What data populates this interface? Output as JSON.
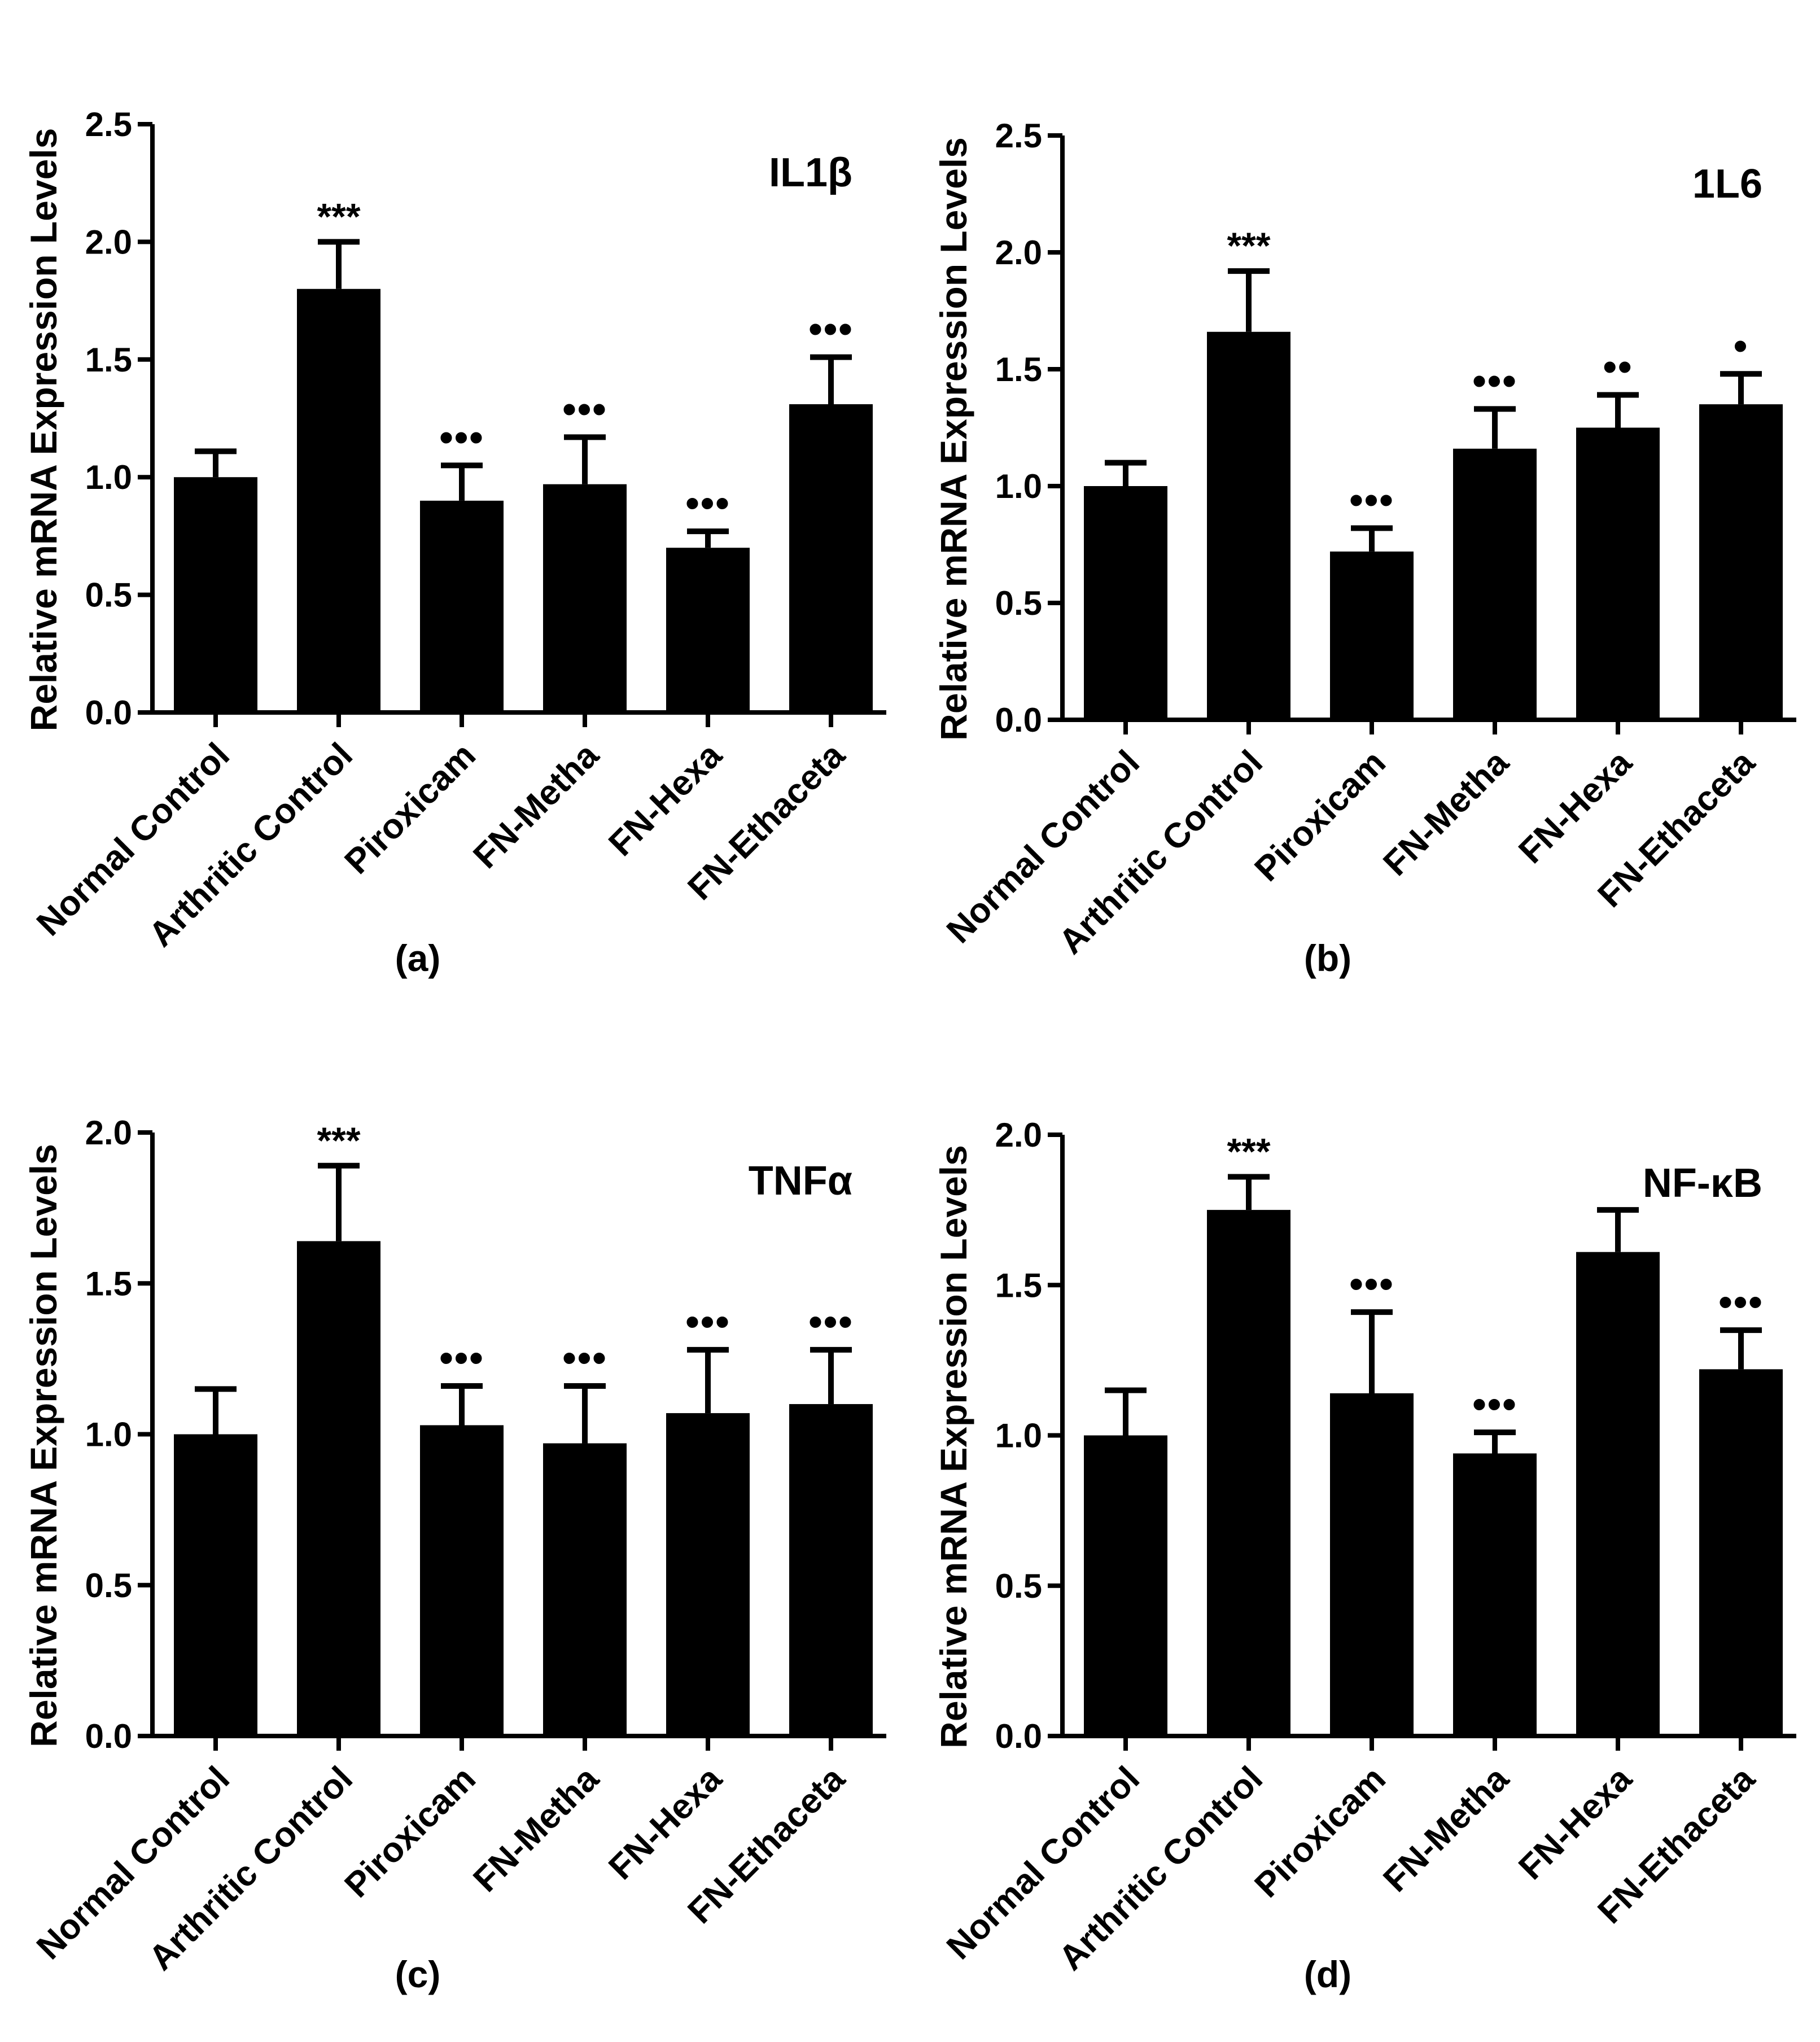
{
  "chart_data": [
    {
      "type": "bar",
      "panel_label": "(a)",
      "title": "IL1β",
      "ylabel": "Relative mRNA Expression Levels",
      "categories": [
        "Normal Control",
        "Arthritic Control",
        "Piroxicam",
        "FN-Metha",
        "FN-Hexa",
        "FN-Ethaceta"
      ],
      "values": [
        1.0,
        1.8,
        0.9,
        0.97,
        0.7,
        1.31
      ],
      "errors": [
        0.11,
        0.2,
        0.15,
        0.2,
        0.07,
        0.2
      ],
      "annotations": [
        "",
        "***",
        "•••",
        "•••",
        "•••",
        "•••"
      ],
      "ylim": [
        0,
        2.5
      ],
      "yticks": [
        "0.0",
        "0.5",
        "1.0",
        "1.5",
        "2.0",
        "2.5"
      ],
      "grid": false,
      "bar_color": "#000000"
    },
    {
      "type": "bar",
      "panel_label": "(b)",
      "title": "1L6",
      "ylabel": "Relative mRNA Expression Levels",
      "categories": [
        "Normal Control",
        "Arthritic Control",
        "Piroxicam",
        "FN-Metha",
        "FN-Hexa",
        "FN-Ethaceta"
      ],
      "values": [
        1.0,
        1.66,
        0.72,
        1.16,
        1.25,
        1.35
      ],
      "errors": [
        0.1,
        0.26,
        0.1,
        0.17,
        0.14,
        0.13
      ],
      "annotations": [
        "",
        "***",
        "•••",
        "•••",
        "••",
        "•"
      ],
      "ylim": [
        0,
        2.5
      ],
      "yticks": [
        "0.0",
        "0.5",
        "1.0",
        "1.5",
        "2.0",
        "2.5"
      ],
      "grid": false,
      "bar_color": "#000000"
    },
    {
      "type": "bar",
      "panel_label": "(c)",
      "title": "TNFα",
      "ylabel": "Relative mRNA Expression Levels",
      "categories": [
        "Normal Control",
        "Arthritic Control",
        "Piroxicam",
        "FN-Metha",
        "FN-Hexa",
        "FN-Ethaceta"
      ],
      "values": [
        1.0,
        1.64,
        1.03,
        0.97,
        1.07,
        1.1
      ],
      "errors": [
        0.15,
        0.25,
        0.13,
        0.19,
        0.21,
        0.18
      ],
      "annotations": [
        "",
        "***",
        "•••",
        "•••",
        "•••",
        "•••"
      ],
      "ylim": [
        0,
        2.0
      ],
      "yticks": [
        "0.0",
        "0.5",
        "1.0",
        "1.5",
        "2.0"
      ],
      "grid": false,
      "bar_color": "#000000"
    },
    {
      "type": "bar",
      "panel_label": "(d)",
      "title": "NF-κB",
      "ylabel": "Relative mRNA Expression Levels",
      "categories": [
        "Normal Control",
        "Arthritic Control",
        "Piroxicam",
        "FN-Metha",
        "FN-Hexa",
        "FN-Ethaceta"
      ],
      "values": [
        1.0,
        1.75,
        1.14,
        0.94,
        1.61,
        1.22
      ],
      "errors": [
        0.15,
        0.11,
        0.27,
        0.07,
        0.14,
        0.13
      ],
      "annotations": [
        "",
        "***",
        "•••",
        "•••",
        "",
        "•••"
      ],
      "ylim": [
        0,
        2.0
      ],
      "yticks": [
        "0.0",
        "0.5",
        "1.0",
        "1.5",
        "2.0"
      ],
      "grid": false,
      "bar_color": "#000000"
    }
  ]
}
